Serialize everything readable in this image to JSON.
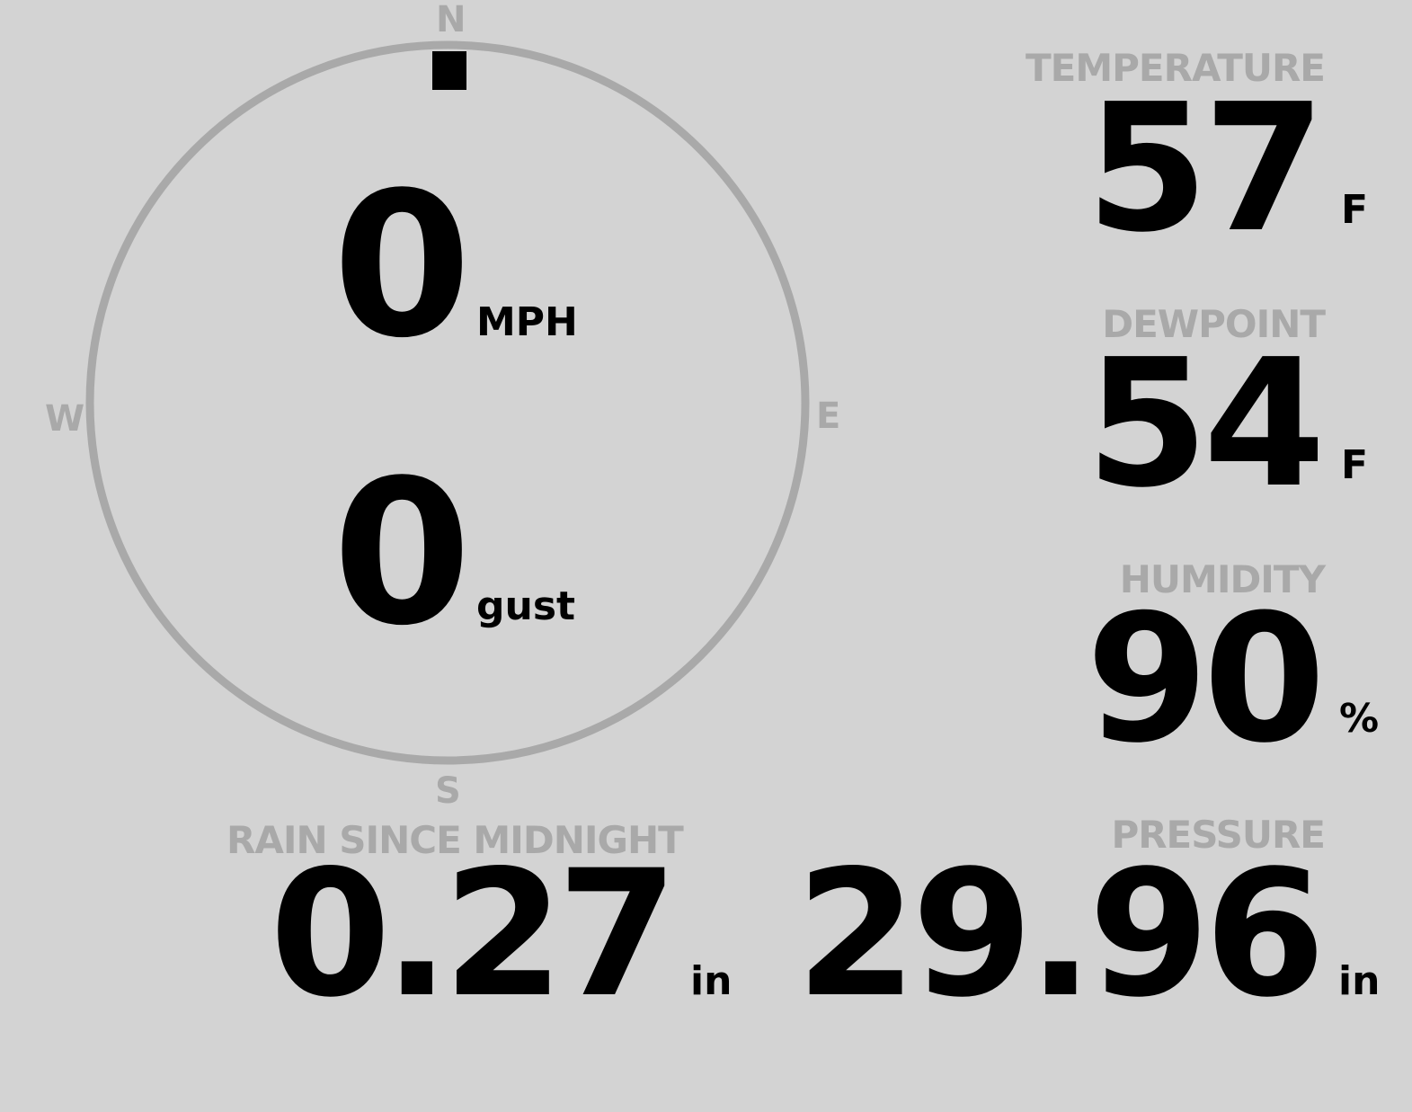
{
  "wind": {
    "speed": "0",
    "speed_unit": "MPH",
    "gust": "0",
    "gust_unit": "gust",
    "direction_deg": 0,
    "compass": {
      "n": "N",
      "e": "E",
      "s": "S",
      "w": "W"
    }
  },
  "temperature": {
    "label": "TEMPERATURE",
    "value": "57",
    "unit": "F"
  },
  "dewpoint": {
    "label": "DEWPOINT",
    "value": "54",
    "unit": "F"
  },
  "humidity": {
    "label": "HUMIDITY",
    "value": "90",
    "unit": "%"
  },
  "rain": {
    "label": "RAIN SINCE MIDNIGHT",
    "value": "0.27",
    "unit": "in"
  },
  "pressure": {
    "label": "PRESSURE",
    "value": "29.96",
    "unit": "in"
  },
  "colors": {
    "background": "#d3d3d3",
    "muted": "#a9a9a9",
    "value": "#000000"
  }
}
